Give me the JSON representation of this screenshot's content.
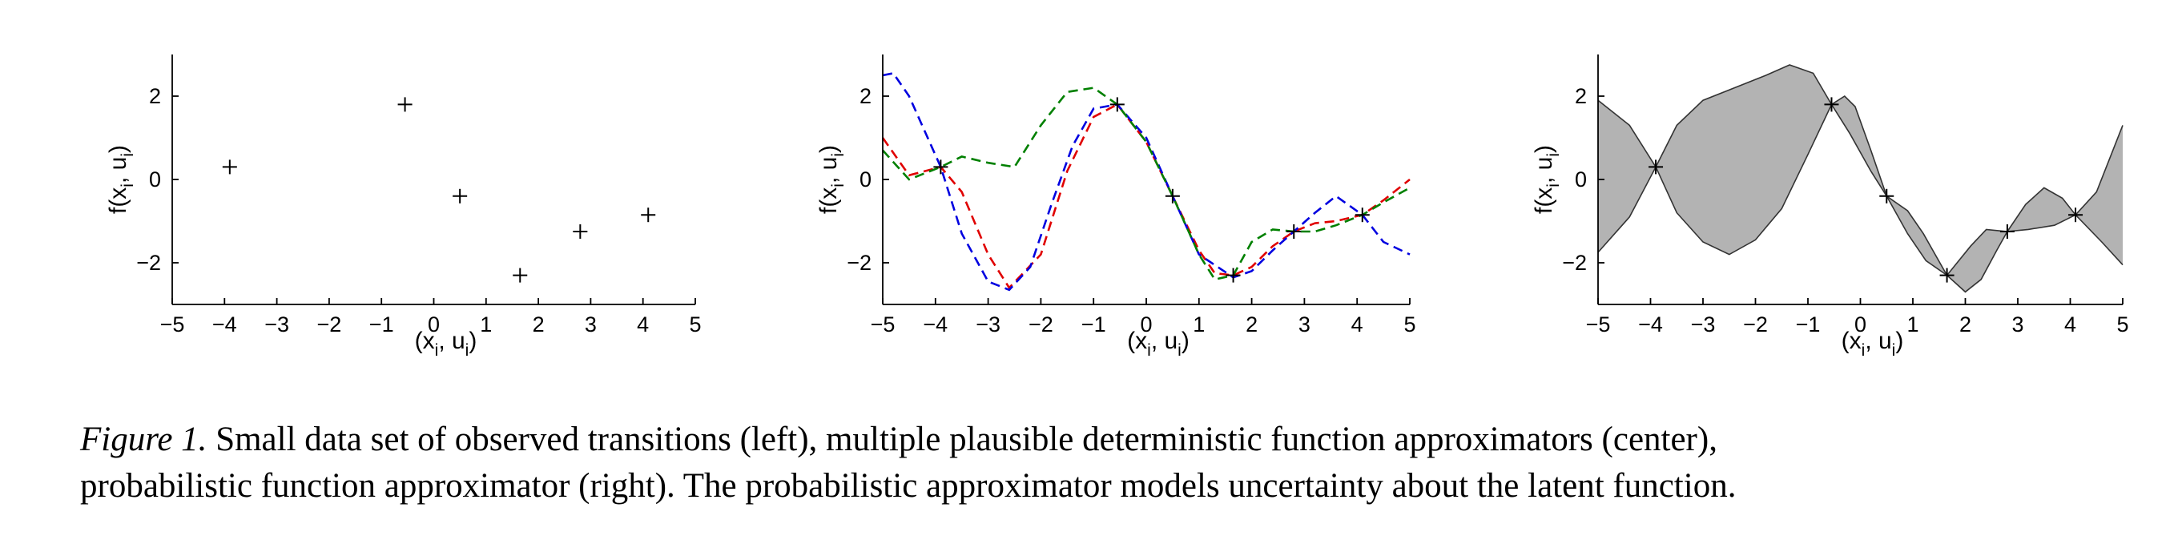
{
  "figure": {
    "axis_text": {
      "ylabel_main": "f(x",
      "ylabel_sub1": "i",
      "ylabel_mid": ", u",
      "ylabel_sub2": "i",
      "ylabel_close": ")",
      "xlabel_main": "(x",
      "xlabel_sub1": "i",
      "xlabel_mid": ", u",
      "xlabel_sub2": "i",
      "xlabel_close": ")"
    },
    "colors": {
      "axes": "#000000",
      "band_fill": "#b3b3b3",
      "band_edge": "#333333",
      "series": [
        "#e00000",
        "#0000e0",
        "#008000"
      ]
    }
  },
  "chart_data": [
    {
      "type": "scatter",
      "xlim": [
        -5,
        5
      ],
      "ylim": [
        -3,
        3
      ],
      "xticks": [
        -5,
        -4,
        -3,
        -2,
        -1,
        0,
        1,
        2,
        3,
        4,
        5
      ],
      "yticks": [
        -2,
        0,
        2
      ],
      "points": [
        [
          -3.9,
          0.3
        ],
        [
          -0.55,
          1.8
        ],
        [
          0.5,
          -0.4
        ],
        [
          1.65,
          -2.3
        ],
        [
          2.8,
          -1.25
        ],
        [
          4.1,
          -0.85
        ]
      ],
      "marker": "plus"
    },
    {
      "type": "line",
      "xlim": [
        -5,
        5
      ],
      "ylim": [
        -3,
        3
      ],
      "xticks": [
        -5,
        -4,
        -3,
        -2,
        -1,
        0,
        1,
        2,
        3,
        4,
        5
      ],
      "yticks": [
        -2,
        0,
        2
      ],
      "style": "dashed",
      "points": [
        [
          -3.9,
          0.3
        ],
        [
          -0.55,
          1.8
        ],
        [
          0.5,
          -0.4
        ],
        [
          1.65,
          -2.3
        ],
        [
          2.8,
          -1.25
        ],
        [
          4.1,
          -0.85
        ]
      ],
      "series": [
        {
          "x": [
            -5,
            -4.5,
            -3.9,
            -3.5,
            -3.0,
            -2.6,
            -2.0,
            -1.5,
            -1.0,
            -0.55,
            0.0,
            0.5,
            1.0,
            1.3,
            1.65,
            2.0,
            2.4,
            2.8,
            3.2,
            3.6,
            4.1,
            4.5,
            5.0
          ],
          "y": [
            1.0,
            0.1,
            0.3,
            -0.3,
            -1.8,
            -2.6,
            -1.8,
            0.2,
            1.5,
            1.8,
            0.9,
            -0.4,
            -1.7,
            -2.25,
            -2.3,
            -2.1,
            -1.6,
            -1.25,
            -1.05,
            -1.0,
            -0.85,
            -0.5,
            0.0
          ]
        },
        {
          "x": [
            -5,
            -4.8,
            -4.5,
            -3.9,
            -3.5,
            -3.0,
            -2.6,
            -2.2,
            -1.8,
            -1.4,
            -1.0,
            -0.55,
            0.0,
            0.5,
            1.0,
            1.65,
            2.0,
            2.4,
            2.8,
            3.2,
            3.6,
            4.1,
            4.5,
            5.0
          ],
          "y": [
            2.5,
            2.55,
            2.0,
            0.3,
            -1.3,
            -2.45,
            -2.65,
            -2.1,
            -0.6,
            0.8,
            1.7,
            1.8,
            1.0,
            -0.4,
            -1.8,
            -2.35,
            -2.2,
            -1.7,
            -1.25,
            -0.8,
            -0.4,
            -0.85,
            -1.5,
            -1.8
          ]
        },
        {
          "x": [
            -5,
            -4.5,
            -3.9,
            -3.5,
            -3.0,
            -2.5,
            -2.0,
            -1.5,
            -1.0,
            -0.55,
            0.0,
            0.5,
            1.0,
            1.3,
            1.65,
            2.0,
            2.4,
            2.8,
            3.2,
            3.6,
            4.1,
            4.5,
            5.0
          ],
          "y": [
            0.7,
            0.0,
            0.3,
            0.55,
            0.4,
            0.3,
            1.3,
            2.1,
            2.2,
            1.8,
            0.9,
            -0.4,
            -1.8,
            -2.4,
            -2.3,
            -1.5,
            -1.2,
            -1.25,
            -1.25,
            -1.1,
            -0.85,
            -0.55,
            -0.2
          ]
        }
      ]
    },
    {
      "type": "area",
      "xlim": [
        -5,
        5
      ],
      "ylim": [
        -3,
        3
      ],
      "xticks": [
        -5,
        -4,
        -3,
        -2,
        -1,
        0,
        1,
        2,
        3,
        4,
        5
      ],
      "yticks": [
        -2,
        0,
        2
      ],
      "points": [
        [
          -3.9,
          0.3
        ],
        [
          -0.55,
          1.8
        ],
        [
          0.5,
          -0.4
        ],
        [
          1.65,
          -2.3
        ],
        [
          2.8,
          -1.25
        ],
        [
          4.1,
          -0.85
        ]
      ],
      "upper": [
        [
          -5,
          1.9
        ],
        [
          -4.4,
          1.3
        ],
        [
          -3.9,
          0.3
        ],
        [
          -3.5,
          1.3
        ],
        [
          -3.0,
          1.9
        ],
        [
          -2.4,
          2.2
        ],
        [
          -1.8,
          2.5
        ],
        [
          -1.35,
          2.75
        ],
        [
          -0.9,
          2.55
        ],
        [
          -0.55,
          1.8
        ],
        [
          -0.3,
          2.0
        ],
        [
          -0.1,
          1.75
        ],
        [
          0.2,
          0.7
        ],
        [
          0.5,
          -0.4
        ],
        [
          0.9,
          -1.3
        ],
        [
          1.25,
          -1.95
        ],
        [
          1.65,
          -2.3
        ],
        [
          2.1,
          -1.6
        ],
        [
          2.4,
          -1.2
        ],
        [
          2.8,
          -1.25
        ],
        [
          3.15,
          -0.6
        ],
        [
          3.5,
          -0.2
        ],
        [
          3.85,
          -0.45
        ],
        [
          4.1,
          -0.85
        ],
        [
          4.5,
          -0.3
        ],
        [
          5.0,
          1.3
        ]
      ],
      "lower": [
        [
          -5,
          -1.75
        ],
        [
          -4.4,
          -0.9
        ],
        [
          -3.9,
          0.3
        ],
        [
          -3.5,
          -0.8
        ],
        [
          -3.0,
          -1.5
        ],
        [
          -2.5,
          -1.8
        ],
        [
          -2.0,
          -1.45
        ],
        [
          -1.5,
          -0.7
        ],
        [
          -1.0,
          0.6
        ],
        [
          -0.55,
          1.8
        ],
        [
          -0.2,
          1.1
        ],
        [
          0.2,
          0.2
        ],
        [
          0.5,
          -0.4
        ],
        [
          0.9,
          -0.75
        ],
        [
          1.2,
          -1.3
        ],
        [
          1.65,
          -2.3
        ],
        [
          2.0,
          -2.7
        ],
        [
          2.3,
          -2.4
        ],
        [
          2.6,
          -1.7
        ],
        [
          2.8,
          -1.25
        ],
        [
          3.2,
          -1.2
        ],
        [
          3.7,
          -1.1
        ],
        [
          4.1,
          -0.85
        ],
        [
          4.6,
          -1.5
        ],
        [
          5.0,
          -2.05
        ]
      ],
      "marker": "plus"
    }
  ],
  "caption": {
    "label": "Figure 1.",
    "line1": " Small data set of observed transitions (left), multiple plausible deterministic function approximators (center),",
    "line2": "probabilistic function approximator (right).  The probabilistic approximator models uncertainty about the latent function."
  }
}
